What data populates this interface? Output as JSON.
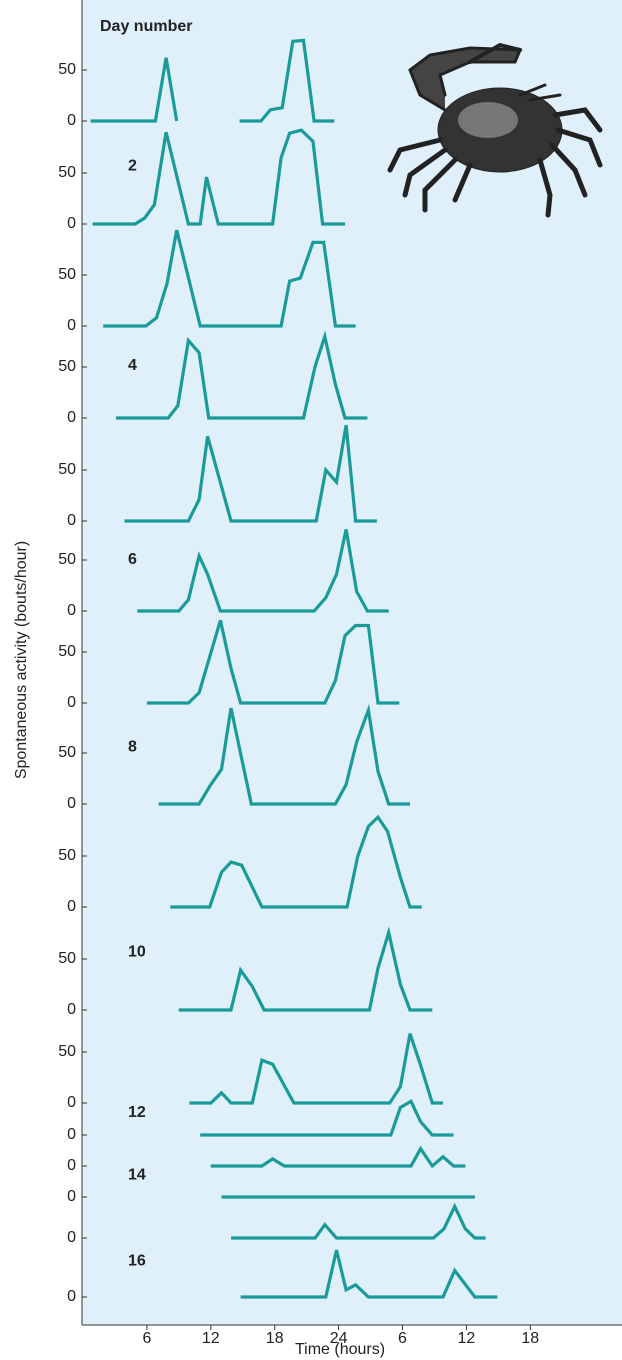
{
  "chart_data": {
    "type": "line",
    "title": "Day number",
    "xlabel": "Time (hours)",
    "ylabel": "Spontaneous activity (bouts/hour)",
    "color": "#1a9a98",
    "background": "#dff0fb",
    "xlim": [
      0,
      50
    ],
    "xticks": [
      6,
      12,
      18,
      24,
      {
        "value": 30,
        "label": "6"
      },
      {
        "value": 36,
        "label": "12"
      },
      {
        "value": 42,
        "label": "18"
      }
    ],
    "ylim": [
      0,
      100
    ],
    "series": [
      {
        "x": [
          0.7,
          6.8,
          7.8,
          8.8,
          11.5,
          14.7,
          16.7,
          17.6,
          18.7,
          19.7,
          20.7,
          21.7,
          23.6
        ],
        "values": [
          0,
          0,
          62,
          0,
          null,
          0,
          0,
          11,
          13,
          78,
          79,
          0,
          0
        ],
        "yticks": [
          0,
          50
        ]
      },
      {
        "label": "2",
        "x": [
          0.9,
          4.9,
          5.8,
          6.7,
          7.8,
          9.9,
          11,
          11.6,
          12.7,
          17.8,
          18.6,
          19.4,
          20.5,
          21.6,
          22.5,
          24.6
        ],
        "values": [
          0,
          0,
          6,
          19,
          90,
          0,
          0,
          46,
          0,
          0,
          65,
          89,
          92,
          81,
          0,
          0
        ],
        "yticks": [
          0,
          50
        ]
      },
      {
        "x": [
          1.9,
          5.9,
          6.9,
          7.9,
          8.8,
          10,
          11,
          18.6,
          19.4,
          20.4,
          21.6,
          22.6,
          23.7,
          25.6
        ],
        "values": [
          0,
          0,
          8,
          42,
          94,
          43,
          0,
          0,
          44,
          47,
          82,
          82,
          0,
          0
        ],
        "yticks": [
          0,
          50
        ]
      },
      {
        "label": "4",
        "x": [
          3.1,
          8,
          8.9,
          9.9,
          10.9,
          11.8,
          20.7,
          21.8,
          22.7,
          23.7,
          24.6,
          26.7
        ],
        "values": [
          0,
          0,
          12,
          76,
          64,
          0,
          0,
          51,
          80,
          33,
          0,
          0
        ],
        "yticks": [
          0,
          50
        ]
      },
      {
        "x": [
          3.9,
          9.9,
          10.9,
          11.7,
          13.9,
          21.9,
          22.8,
          23.8,
          24.7,
          25.6,
          27.6
        ],
        "values": [
          0,
          0,
          21,
          83,
          0,
          0,
          50,
          38,
          94,
          0,
          0
        ],
        "yticks": [
          0,
          50
        ]
      },
      {
        "label": "6",
        "x": [
          5.1,
          9,
          9.9,
          10.9,
          11.7,
          12.9,
          21.7,
          22.8,
          23.8,
          24.7,
          25.7,
          26.7,
          28.7
        ],
        "values": [
          0,
          0,
          11,
          54,
          36,
          0,
          0,
          13,
          36,
          80,
          19,
          0,
          0
        ],
        "yticks": [
          0,
          50
        ]
      },
      {
        "x": [
          6,
          9.9,
          10.9,
          12.9,
          13.9,
          14.8,
          22.7,
          23.7,
          24.6,
          25.6,
          26.8,
          27.7,
          29.7
        ],
        "values": [
          0,
          0,
          10,
          81,
          34,
          0,
          0,
          22,
          66,
          76,
          76,
          0,
          0
        ],
        "yticks": [
          0,
          50
        ]
      },
      {
        "label": "8",
        "x": [
          7.1,
          10.9,
          12,
          13,
          13.9,
          15.8,
          23.7,
          24.7,
          25.7,
          26.8,
          27.7,
          28.7,
          30.7
        ],
        "values": [
          0,
          0,
          19,
          34,
          94,
          0,
          0,
          19,
          61,
          92,
          32,
          0,
          0
        ],
        "yticks": [
          0,
          50
        ]
      },
      {
        "x": [
          8.2,
          11.9,
          13,
          13.9,
          14.9,
          16.8,
          24.8,
          25.8,
          26.8,
          27.7,
          28.6,
          29.8,
          30.7,
          31.8
        ],
        "values": [
          0,
          0,
          34,
          44,
          41,
          0,
          0,
          50,
          79,
          88,
          74,
          29,
          0,
          0
        ],
        "yticks": [
          0,
          50
        ]
      },
      {
        "label": "10",
        "x": [
          9,
          13.9,
          14.8,
          15.9,
          17,
          26.9,
          27.7,
          28.7,
          29.8,
          30.7,
          32.8
        ],
        "values": [
          0,
          0,
          39,
          23,
          0,
          0,
          41,
          76,
          25,
          0,
          0
        ],
        "yticks": [
          0,
          50
        ]
      },
      {
        "x": [
          10,
          12,
          13,
          13.9,
          15.9,
          16.8,
          17.8,
          19.8,
          28.8,
          29.8,
          30.7,
          31.7,
          32.8,
          33.8
        ],
        "values": [
          0,
          0,
          10,
          0,
          0,
          42,
          38,
          0,
          0,
          16,
          68,
          37,
          0,
          0
        ],
        "yticks": [
          0,
          50
        ]
      },
      {
        "label": "12",
        "x": [
          11,
          28.9,
          29.8,
          30.8,
          31.7,
          32.8,
          34.8
        ],
        "values": [
          0,
          0,
          27,
          33,
          13,
          0,
          0
        ],
        "yticks": [
          0
        ]
      },
      {
        "x": [
          12,
          16.8,
          17.8,
          18.9,
          30.8,
          31.7,
          32.8,
          33.8,
          34.8,
          35.9
        ],
        "values": [
          0,
          0,
          7,
          0,
          0,
          17,
          0,
          9,
          0,
          0
        ],
        "yticks": [
          0
        ]
      },
      {
        "label": "14",
        "x": [
          13,
          36.8
        ],
        "values": [
          0,
          0
        ],
        "yticks": [
          0
        ]
      },
      {
        "x": [
          13.9,
          21.8,
          22.7,
          23.8,
          32.9,
          33.9,
          34.9,
          35.9,
          36.8,
          37.8
        ],
        "values": [
          0,
          0,
          13,
          0,
          0,
          9,
          31,
          9,
          0,
          0
        ],
        "yticks": [
          0
        ]
      },
      {
        "label": "16",
        "x": [
          14.8,
          22.8,
          23.8,
          24.7,
          25.6,
          26.8,
          33.8,
          34.9,
          36.8,
          38.9
        ],
        "values": [
          0,
          0,
          46,
          7,
          12,
          0,
          0,
          26,
          0,
          0
        ],
        "yticks": [
          0
        ]
      }
    ]
  }
}
